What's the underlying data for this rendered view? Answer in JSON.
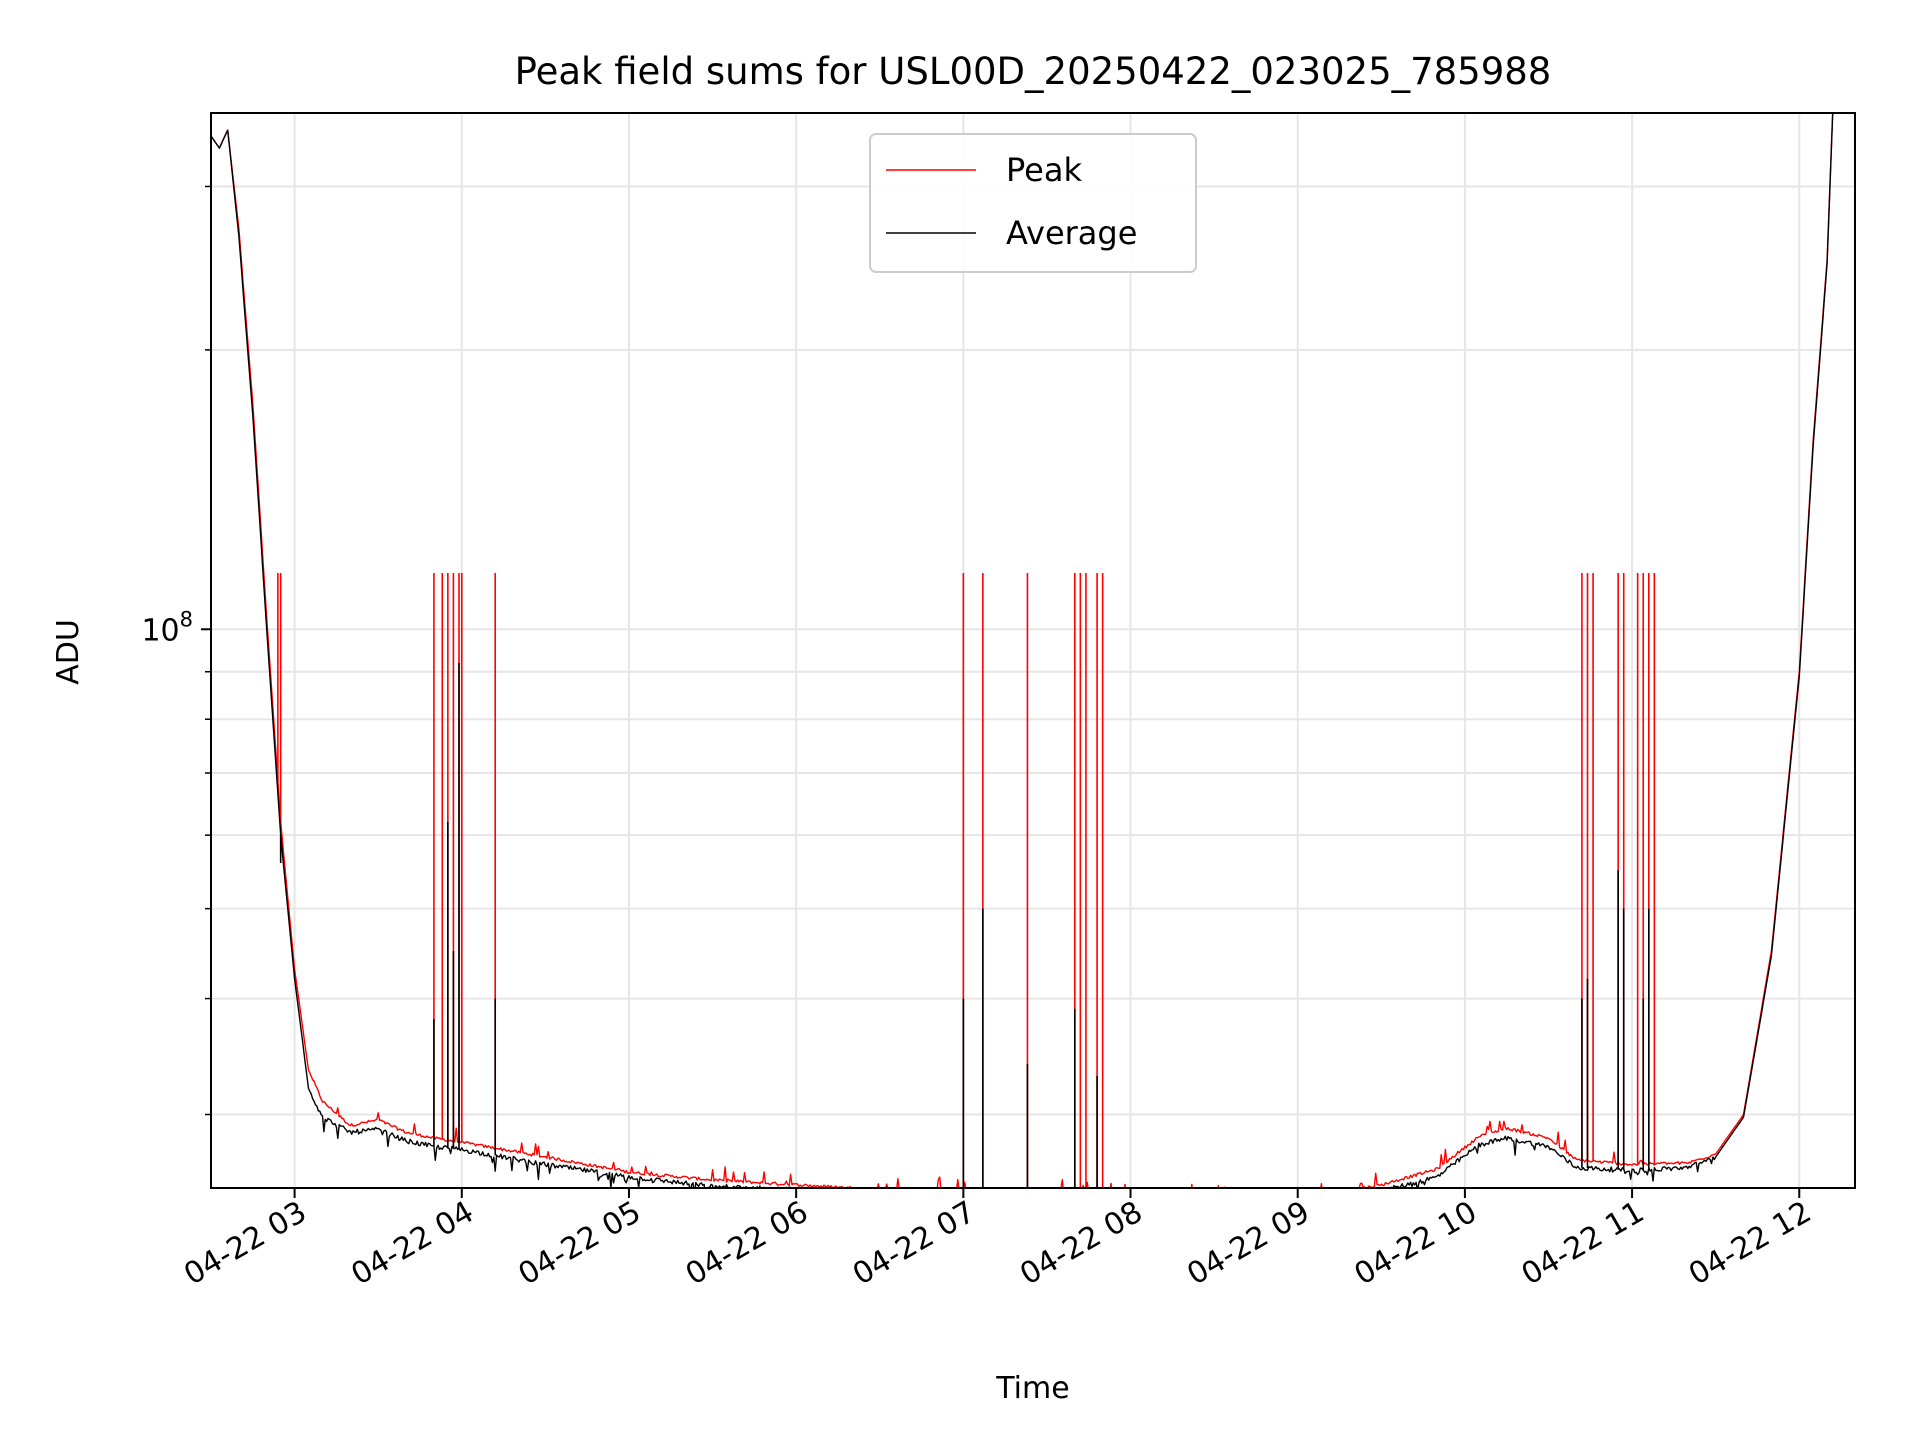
{
  "chart_data": {
    "type": "line",
    "title": "Peak field sums for USL00D_20250422_023025_785988",
    "xlabel": "Time",
    "ylabel": "ADU",
    "x_tick_labels": [
      "04-22 03",
      "04-22 04",
      "04-22 05",
      "04-22 06",
      "04-22 07",
      "04-22 08",
      "04-22 09",
      "04-22 10",
      "04-22 11",
      "04-22 12"
    ],
    "y_tick_label": "10",
    "y_tick_exponent": "8",
    "y_scale": "log",
    "xlim": [
      "2025-04-22 02:30",
      "2025-04-22 12:20"
    ],
    "ylim": [
      25000000,
      360000000
    ],
    "grid": true,
    "legend_position": "top-center",
    "series": [
      {
        "name": "Peak",
        "color": "#ff0000",
        "points": [
          [
            "2025-04-22 02:30",
            340000000
          ],
          [
            "2025-04-22 02:33",
            330000000
          ],
          [
            "2025-04-22 02:36",
            345000000
          ],
          [
            "2025-04-22 02:40",
            270000000
          ],
          [
            "2025-04-22 02:45",
            175000000
          ],
          [
            "2025-04-22 02:50",
            103000000
          ],
          [
            "2025-04-22 02:55",
            62000000
          ],
          [
            "2025-04-22 03:00",
            43000000
          ],
          [
            "2025-04-22 03:05",
            33500000
          ],
          [
            "2025-04-22 03:10",
            31000000
          ],
          [
            "2025-04-22 03:20",
            29200000
          ],
          [
            "2025-04-22 03:30",
            29600000
          ],
          [
            "2025-04-22 03:40",
            28700000
          ],
          [
            "2025-04-22 03:50",
            28300000
          ],
          [
            "2025-04-22 04:00",
            28000000
          ],
          [
            "2025-04-22 04:15",
            27500000
          ],
          [
            "2025-04-22 04:30",
            27000000
          ],
          [
            "2025-04-22 05:00",
            26000000
          ],
          [
            "2025-04-22 05:30",
            25500000
          ],
          [
            "2025-04-22 06:00",
            25200000
          ],
          [
            "2025-04-22 06:30",
            24900000
          ],
          [
            "2025-04-22 07:00",
            24800000
          ],
          [
            "2025-04-22 07:30",
            24700000
          ],
          [
            "2025-04-22 08:00",
            24600000
          ],
          [
            "2025-04-22 08:30",
            24400000
          ],
          [
            "2025-04-22 09:00",
            24300000
          ],
          [
            "2025-04-22 09:30",
            25200000
          ],
          [
            "2025-04-22 09:50",
            26200000
          ],
          [
            "2025-04-22 10:05",
            28400000
          ],
          [
            "2025-04-22 10:15",
            29000000
          ],
          [
            "2025-04-22 10:30",
            28300000
          ],
          [
            "2025-04-22 10:40",
            26800000
          ],
          [
            "2025-04-22 11:00",
            26500000
          ],
          [
            "2025-04-22 11:20",
            26600000
          ],
          [
            "2025-04-22 11:30",
            27200000
          ],
          [
            "2025-04-22 11:40",
            30000000
          ],
          [
            "2025-04-22 11:50",
            45000000
          ],
          [
            "2025-04-22 12:00",
            90000000
          ],
          [
            "2025-04-22 12:05",
            160000000
          ],
          [
            "2025-04-22 12:10",
            250000000
          ],
          [
            "2025-04-22 12:12",
            360000000
          ]
        ],
        "spikes": [
          [
            "2025-04-22 02:54",
            115000000
          ],
          [
            "2025-04-22 02:55",
            115000000
          ],
          [
            "2025-04-22 03:50",
            115000000
          ],
          [
            "2025-04-22 03:53",
            115000000
          ],
          [
            "2025-04-22 03:55",
            115000000
          ],
          [
            "2025-04-22 03:57",
            115000000
          ],
          [
            "2025-04-22 03:59",
            115000000
          ],
          [
            "2025-04-22 04:00",
            115000000
          ],
          [
            "2025-04-22 04:12",
            115000000
          ],
          [
            "2025-04-22 07:00",
            115000000
          ],
          [
            "2025-04-22 07:07",
            115000000
          ],
          [
            "2025-04-22 07:23",
            115000000
          ],
          [
            "2025-04-22 07:40",
            115000000
          ],
          [
            "2025-04-22 07:42",
            115000000
          ],
          [
            "2025-04-22 07:44",
            115000000
          ],
          [
            "2025-04-22 07:48",
            115000000
          ],
          [
            "2025-04-22 07:50",
            115000000
          ],
          [
            "2025-04-22 10:42",
            115000000
          ],
          [
            "2025-04-22 10:44",
            115000000
          ],
          [
            "2025-04-22 10:46",
            115000000
          ],
          [
            "2025-04-22 10:55",
            115000000
          ],
          [
            "2025-04-22 10:57",
            115000000
          ],
          [
            "2025-04-22 11:02",
            115000000
          ],
          [
            "2025-04-22 11:04",
            115000000
          ],
          [
            "2025-04-22 11:06",
            115000000
          ],
          [
            "2025-04-22 11:08",
            115000000
          ]
        ]
      },
      {
        "name": "Average",
        "color": "#000000",
        "points": [
          [
            "2025-04-22 02:30",
            340000000
          ],
          [
            "2025-04-22 02:33",
            330000000
          ],
          [
            "2025-04-22 02:36",
            345000000
          ],
          [
            "2025-04-22 02:40",
            265000000
          ],
          [
            "2025-04-22 02:45",
            170000000
          ],
          [
            "2025-04-22 02:50",
            100000000
          ],
          [
            "2025-04-22 02:55",
            60000000
          ],
          [
            "2025-04-22 03:00",
            42000000
          ],
          [
            "2025-04-22 03:05",
            32000000
          ],
          [
            "2025-04-22 03:10",
            29800000
          ],
          [
            "2025-04-22 03:20",
            28700000
          ],
          [
            "2025-04-22 03:30",
            28900000
          ],
          [
            "2025-04-22 03:40",
            28100000
          ],
          [
            "2025-04-22 03:50",
            27700000
          ],
          [
            "2025-04-22 04:00",
            27500000
          ],
          [
            "2025-04-22 04:15",
            27000000
          ],
          [
            "2025-04-22 04:30",
            26500000
          ],
          [
            "2025-04-22 05:00",
            25700000
          ],
          [
            "2025-04-22 05:30",
            25100000
          ],
          [
            "2025-04-22 06:00",
            24900000
          ],
          [
            "2025-04-22 06:30",
            24700000
          ],
          [
            "2025-04-22 07:00",
            24600000
          ],
          [
            "2025-04-22 07:30",
            24500000
          ],
          [
            "2025-04-22 08:00",
            24300000
          ],
          [
            "2025-04-22 08:30",
            24200000
          ],
          [
            "2025-04-22 09:00",
            24100000
          ],
          [
            "2025-04-22 09:30",
            24800000
          ],
          [
            "2025-04-22 09:50",
            25700000
          ],
          [
            "2025-04-22 10:05",
            27800000
          ],
          [
            "2025-04-22 10:15",
            28300000
          ],
          [
            "2025-04-22 10:30",
            27700000
          ],
          [
            "2025-04-22 10:40",
            26300000
          ],
          [
            "2025-04-22 11:00",
            26100000
          ],
          [
            "2025-04-22 11:20",
            26300000
          ],
          [
            "2025-04-22 11:30",
            27000000
          ],
          [
            "2025-04-22 11:40",
            29800000
          ],
          [
            "2025-04-22 11:50",
            44500000
          ],
          [
            "2025-04-22 12:00",
            89000000
          ],
          [
            "2025-04-22 12:05",
            158000000
          ],
          [
            "2025-04-22 12:10",
            248000000
          ],
          [
            "2025-04-22 12:12",
            360000000
          ]
        ],
        "spikes": [
          [
            "2025-04-22 02:55",
            56000000
          ],
          [
            "2025-04-22 03:50",
            38000000
          ],
          [
            "2025-04-22 03:55",
            62000000
          ],
          [
            "2025-04-22 03:57",
            45000000
          ],
          [
            "2025-04-22 03:59",
            92000000
          ],
          [
            "2025-04-22 04:12",
            40000000
          ],
          [
            "2025-04-22 07:00",
            40000000
          ],
          [
            "2025-04-22 07:07",
            50000000
          ],
          [
            "2025-04-22 07:23",
            34000000
          ],
          [
            "2025-04-22 07:40",
            39000000
          ],
          [
            "2025-04-22 07:48",
            33000000
          ],
          [
            "2025-04-22 10:42",
            40000000
          ],
          [
            "2025-04-22 10:44",
            42000000
          ],
          [
            "2025-04-22 10:55",
            55000000
          ],
          [
            "2025-04-22 10:57",
            50000000
          ],
          [
            "2025-04-22 11:04",
            40000000
          ],
          [
            "2025-04-22 11:06",
            50000000
          ]
        ]
      }
    ]
  }
}
